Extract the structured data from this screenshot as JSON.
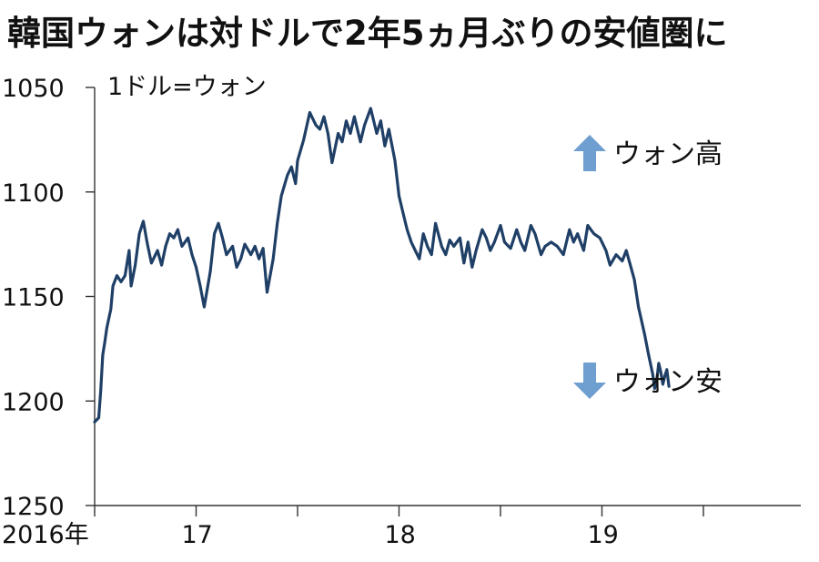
{
  "title": "韓国ウォンは対ドルで2年5ヵ月ぶりの安値圏に",
  "colors": {
    "line": "#1f3f66",
    "arrow": "#6f9fd0",
    "axis": "#333333"
  },
  "chart_data": {
    "type": "line",
    "title": "韓国ウォンは対ドルで2年5ヵ月ぶりの安値圏に",
    "unit_label": "1ドル=ウォン",
    "ylabel": "1ドル=ウォン",
    "xlabel": "",
    "y_inverted": true,
    "ylim": [
      1050,
      1250
    ],
    "yticks": [
      1050,
      1100,
      1150,
      1200,
      1250
    ],
    "ytick_labels": [
      "1050",
      "1100",
      "1150",
      "1200",
      "1250"
    ],
    "xlim": [
      2016.0,
      2019.48
    ],
    "xticks": [
      2016.0,
      2016.5,
      2017.0,
      2017.5,
      2018.0,
      2018.5,
      2019.0
    ],
    "xtick_labels": [
      {
        "x": 2016.0,
        "label": "2016年"
      },
      {
        "x": 2016.5,
        "label": "17"
      },
      {
        "x": 2017.5,
        "label": "18"
      },
      {
        "x": 2018.5,
        "label": "19"
      }
    ],
    "grid": false,
    "annotations": [
      {
        "text": "ウォン高",
        "arrow": "up"
      },
      {
        "text": "ウォン安",
        "arrow": "down"
      }
    ],
    "series": [
      {
        "x": [
          2016.0,
          2016.02,
          2016.03,
          2016.04,
          2016.05,
          2016.06,
          2016.08,
          2016.09,
          2016.11,
          2016.13,
          2016.15,
          2016.17,
          2016.18,
          2016.2,
          2016.22,
          2016.24,
          2016.26,
          2016.28,
          2016.31,
          2016.33,
          2016.35,
          2016.37,
          2016.39,
          2016.41,
          2016.43,
          2016.46,
          2016.48,
          2016.5,
          2016.52,
          2016.54,
          2016.57,
          2016.59,
          2016.61,
          2016.63,
          2016.65,
          2016.68,
          2016.7,
          2016.72,
          2016.74,
          2016.77,
          2016.79,
          2016.81,
          2016.83,
          2016.85,
          2016.88,
          2016.9,
          2016.92,
          2016.95,
          2016.97,
          2016.99,
          2017.0,
          2017.03,
          2017.06,
          2017.09,
          2017.11,
          2017.13,
          2017.15,
          2017.17,
          2017.2,
          2017.22,
          2017.24,
          2017.26,
          2017.28,
          2017.31,
          2017.33,
          2017.36,
          2017.39,
          2017.41,
          2017.43,
          2017.45,
          2017.48,
          2017.5,
          2017.52,
          2017.54,
          2017.56,
          2017.58,
          2017.6,
          2017.62,
          2017.64,
          2017.66,
          2017.68,
          2017.71,
          2017.73,
          2017.75,
          2017.77,
          2017.8,
          2017.82,
          2017.84,
          2017.86,
          2017.88,
          2017.91,
          2017.93,
          2017.95,
          2017.97,
          2018.0,
          2018.02,
          2018.05,
          2018.08,
          2018.1,
          2018.12,
          2018.15,
          2018.17,
          2018.2,
          2018.22,
          2018.25,
          2018.28,
          2018.31,
          2018.34,
          2018.36,
          2018.38,
          2018.41,
          2018.43,
          2018.46,
          2018.49,
          2018.52,
          2018.54,
          2018.57,
          2018.6,
          2018.62,
          2018.64,
          2018.66,
          2018.68,
          2018.71,
          2018.73,
          2018.75,
          2018.76,
          2018.77,
          2018.78,
          2018.79,
          2018.8,
          2018.81,
          2018.82,
          2018.83
        ],
        "y": [
          1210,
          1208,
          1195,
          1178,
          1172,
          1165,
          1156,
          1145,
          1140,
          1143,
          1140,
          1128,
          1145,
          1135,
          1120,
          1114,
          1125,
          1134,
          1128,
          1135,
          1126,
          1120,
          1122,
          1118,
          1126,
          1122,
          1130,
          1136,
          1145,
          1155,
          1138,
          1120,
          1115,
          1122,
          1130,
          1126,
          1136,
          1132,
          1125,
          1130,
          1126,
          1132,
          1127,
          1148,
          1132,
          1115,
          1102,
          1092,
          1088,
          1096,
          1085,
          1075,
          1062,
          1068,
          1070,
          1064,
          1072,
          1086,
          1072,
          1076,
          1066,
          1072,
          1064,
          1076,
          1068,
          1060,
          1072,
          1066,
          1078,
          1070,
          1085,
          1102,
          1110,
          1118,
          1124,
          1128,
          1132,
          1120,
          1126,
          1130,
          1115,
          1126,
          1130,
          1123,
          1126,
          1122,
          1134,
          1124,
          1136,
          1128,
          1118,
          1122,
          1128,
          1124,
          1116,
          1124,
          1127,
          1118,
          1124,
          1128,
          1116,
          1120,
          1130,
          1126,
          1124,
          1126,
          1130,
          1118,
          1124,
          1120,
          1128,
          1116,
          1120,
          1122,
          1128,
          1135,
          1130,
          1133,
          1128,
          1135,
          1142,
          1155,
          1168,
          1178,
          1187,
          1194,
          1190,
          1182,
          1186,
          1192,
          1188,
          1185,
          1193
        ]
      }
    ]
  }
}
